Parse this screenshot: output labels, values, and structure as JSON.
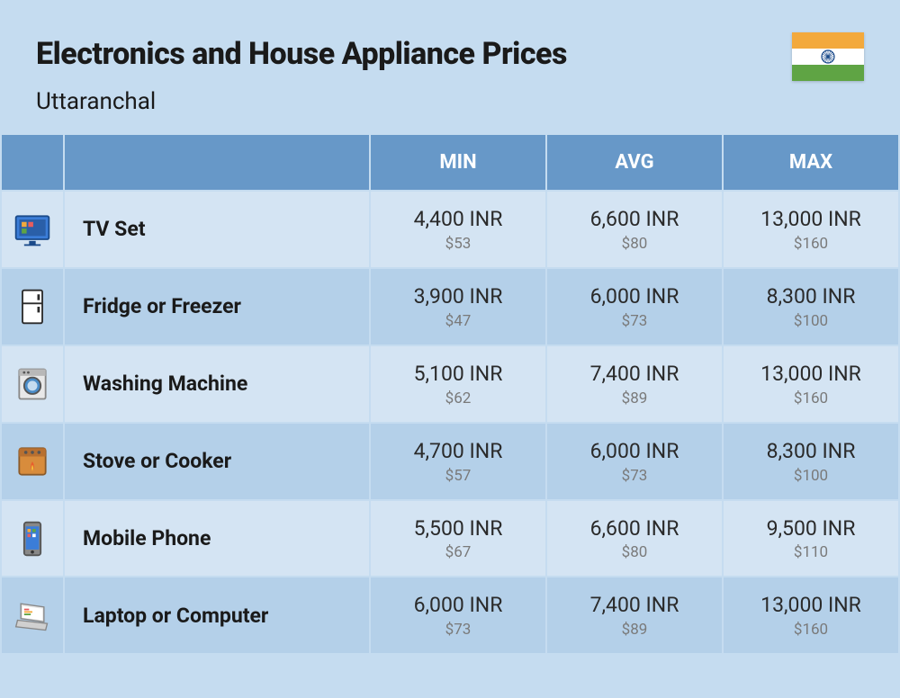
{
  "header": {
    "title": "Electronics and House Appliance Prices",
    "subtitle": "Uttaranchal"
  },
  "flag": {
    "saffron": "#f3a93c",
    "white": "#ffffff",
    "green": "#5fa444",
    "chakra": "#1a4a8a"
  },
  "table": {
    "header_bg": "#6798c8",
    "header_fg": "#ffffff",
    "row_odd_bg": "#d4e4f3",
    "row_even_bg": "#b4d0e9",
    "border_color": "#c5dcf0",
    "columns": [
      "MIN",
      "AVG",
      "MAX"
    ],
    "rows": [
      {
        "icon": "tv",
        "name": "TV Set",
        "min_inr": "4,400 INR",
        "min_usd": "$53",
        "avg_inr": "6,600 INR",
        "avg_usd": "$80",
        "max_inr": "13,000 INR",
        "max_usd": "$160"
      },
      {
        "icon": "fridge",
        "name": "Fridge or Freezer",
        "min_inr": "3,900 INR",
        "min_usd": "$47",
        "avg_inr": "6,000 INR",
        "avg_usd": "$73",
        "max_inr": "8,300 INR",
        "max_usd": "$100"
      },
      {
        "icon": "washer",
        "name": "Washing Machine",
        "min_inr": "5,100 INR",
        "min_usd": "$62",
        "avg_inr": "7,400 INR",
        "avg_usd": "$89",
        "max_inr": "13,000 INR",
        "max_usd": "$160"
      },
      {
        "icon": "stove",
        "name": "Stove or Cooker",
        "min_inr": "4,700 INR",
        "min_usd": "$57",
        "avg_inr": "6,000 INR",
        "avg_usd": "$73",
        "max_inr": "8,300 INR",
        "max_usd": "$100"
      },
      {
        "icon": "phone",
        "name": "Mobile Phone",
        "min_inr": "5,500 INR",
        "min_usd": "$67",
        "avg_inr": "6,600 INR",
        "avg_usd": "$80",
        "max_inr": "9,500 INR",
        "max_usd": "$110"
      },
      {
        "icon": "laptop",
        "name": "Laptop or Computer",
        "min_inr": "6,000 INR",
        "min_usd": "$73",
        "avg_inr": "7,400 INR",
        "avg_usd": "$89",
        "max_inr": "13,000 INR",
        "max_usd": "$160"
      }
    ]
  }
}
